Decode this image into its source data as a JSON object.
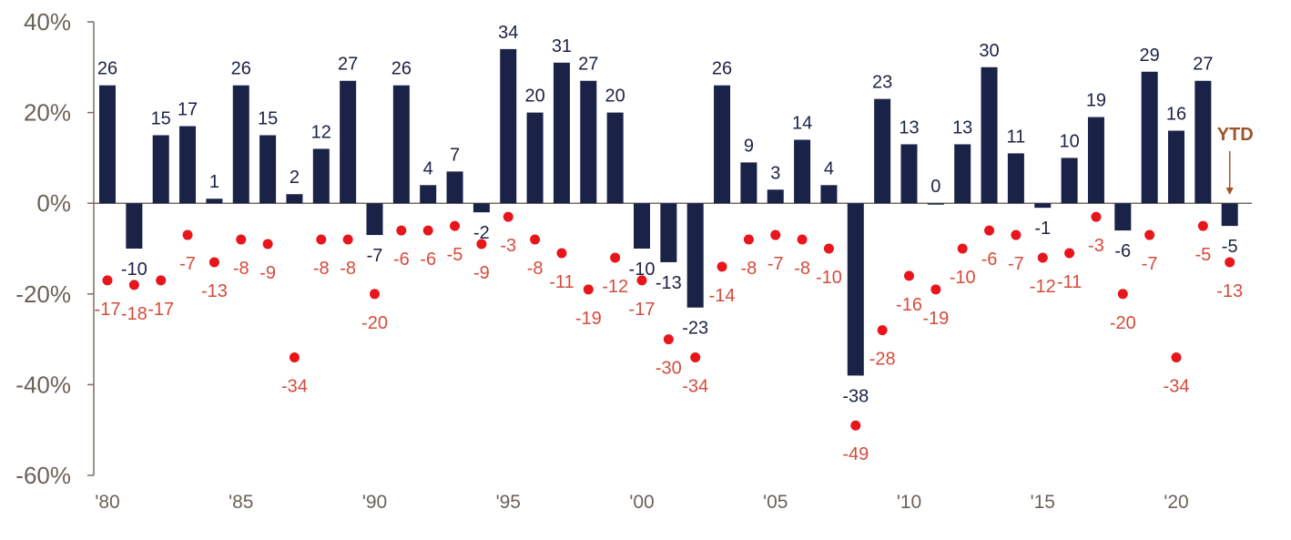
{
  "chart_data": {
    "type": "bar",
    "colors": {
      "bar": "#1a2247",
      "dot": "#e8151b",
      "dot_label": "#d64b3b",
      "axis": "#7a6e63",
      "ytd": "#a0522d"
    },
    "ylim": [
      -60,
      40
    ],
    "yticks": [
      40,
      20,
      0,
      -20,
      -40,
      -60
    ],
    "ytick_labels": [
      "40%",
      "20%",
      "0%",
      "-20%",
      "-40%",
      "-60%"
    ],
    "x": [
      1980,
      1981,
      1982,
      1983,
      1984,
      1985,
      1986,
      1987,
      1988,
      1989,
      1990,
      1991,
      1992,
      1993,
      1994,
      1995,
      1996,
      1997,
      1998,
      1999,
      2000,
      2001,
      2002,
      2003,
      2004,
      2005,
      2006,
      2007,
      2008,
      2009,
      2010,
      2011,
      2012,
      2013,
      2014,
      2015,
      2016,
      2017,
      2018,
      2019,
      2020,
      2021,
      2022
    ],
    "xtick_years": [
      1980,
      1985,
      1990,
      1995,
      2000,
      2005,
      2010,
      2015,
      2020
    ],
    "xtick_labels": [
      "'80",
      "'85",
      "'90",
      "'95",
      "'00",
      "'05",
      "'10",
      "'15",
      "'20"
    ],
    "series": [
      {
        "values": [
          26,
          -10,
          15,
          17,
          1,
          26,
          15,
          2,
          12,
          27,
          -7,
          26,
          4,
          7,
          -2,
          34,
          20,
          31,
          27,
          20,
          -10,
          -13,
          -23,
          26,
          9,
          3,
          14,
          4,
          -38,
          23,
          13,
          0,
          13,
          30,
          11,
          -1,
          10,
          19,
          -6,
          29,
          16,
          27,
          -5
        ]
      },
      {
        "values": [
          -17,
          -18,
          -17,
          -7,
          -13,
          -8,
          -9,
          -34,
          -8,
          -8,
          -20,
          -6,
          -6,
          -5,
          -9,
          -3,
          -8,
          -11,
          -19,
          -12,
          -17,
          -30,
          -34,
          -14,
          -8,
          -7,
          -8,
          -10,
          -49,
          -28,
          -16,
          -19,
          -10,
          -6,
          -7,
          -12,
          -11,
          -3,
          -20,
          -7,
          -34,
          -5,
          -13
        ]
      }
    ],
    "annotation": {
      "text": "YTD"
    }
  }
}
